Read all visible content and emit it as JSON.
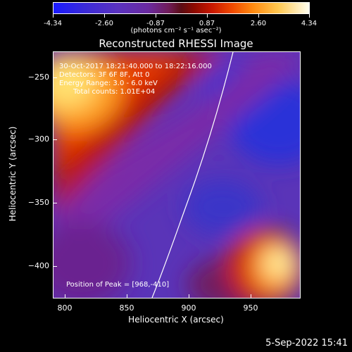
{
  "colorbar": {
    "ticks": [
      "-4.34",
      "-2.60",
      "-0.87",
      "0.87",
      "2.60",
      "4.34"
    ],
    "units": "(photons cm⁻² s⁻¹ asec⁻²)"
  },
  "title": "Reconstructed RHESSI Image",
  "annotations": {
    "time": "30-Oct-2017 18:21:40.000 to 18:22:16.000",
    "detectors": "Detectors: 3F 6F 8F, Att 0",
    "energy": "Energy Range: 3.0 - 6.0 keV",
    "counts": "Total counts: 1.01E+04",
    "peak": "Position of Peak = [968,-410]"
  },
  "axes": {
    "xlabel": "Heliocentric X (arcsec)",
    "ylabel": "Heliocentric Y (arcsec)",
    "x_ticks": [
      "800",
      "850",
      "900",
      "950"
    ],
    "y_ticks": [
      "−250",
      "−300",
      "−350",
      "−400"
    ]
  },
  "footer": {
    "date": "5-Sep-2022 15:41"
  }
}
